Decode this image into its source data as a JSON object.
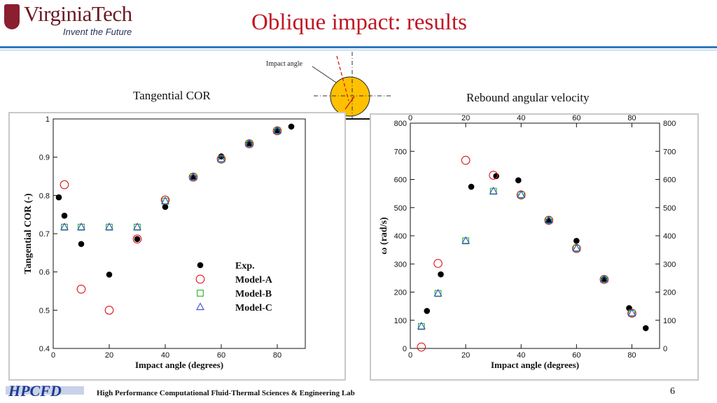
{
  "header": {
    "logo_text": "VirginiaTech",
    "logo_tagline": "Invent the Future",
    "title": "Oblique impact: results"
  },
  "diagram": {
    "impact_angle_label": "Impact angle"
  },
  "labels": {
    "left_heading": "Tangential COR",
    "right_heading": "Rebound angular velocity"
  },
  "footer": {
    "lab_name": "High Performance Computational Fluid-Thermal Sciences & Engineering Lab",
    "page_number": "6",
    "logo_text": "HPCFD"
  },
  "colors": {
    "title": "#c01723",
    "model_a": "#e0161e",
    "model_b": "#1fb31f",
    "model_c": "#3a4ed0",
    "exp": "#000000"
  },
  "chart_data": [
    {
      "type": "scatter",
      "title": "",
      "xlabel": "Impact angle (degrees)",
      "ylabel": "Tangential COR (-)",
      "xlim": [
        0,
        90
      ],
      "ylim": [
        0.4,
        1.0
      ],
      "x_ticks": [
        0,
        20,
        40,
        60,
        80
      ],
      "y_ticks": [
        0.4,
        0.5,
        0.6,
        0.7,
        0.8,
        0.9,
        1
      ],
      "legend_position": "lower-right",
      "series": [
        {
          "name": "Exp.",
          "marker": "filled-circle",
          "points": [
            [
              2,
              0.795
            ],
            [
              4,
              0.747
            ],
            [
              10,
              0.673
            ],
            [
              20,
              0.593
            ],
            [
              30,
              0.686
            ],
            [
              40,
              0.77
            ],
            [
              50,
              0.847
            ],
            [
              60,
              0.902
            ],
            [
              70,
              0.935
            ],
            [
              80,
              0.969
            ],
            [
              85,
              0.98
            ]
          ]
        },
        {
          "name": "Model-A",
          "marker": "open-circle",
          "points": [
            [
              4,
              0.828
            ],
            [
              10,
              0.555
            ],
            [
              20,
              0.5
            ],
            [
              30,
              0.686
            ],
            [
              40,
              0.788
            ],
            [
              50,
              0.848
            ],
            [
              60,
              0.895
            ],
            [
              70,
              0.935
            ],
            [
              80,
              0.969
            ]
          ]
        },
        {
          "name": "Model-B",
          "marker": "open-square",
          "points": [
            [
              4,
              0.717
            ],
            [
              10,
              0.717
            ],
            [
              20,
              0.717
            ],
            [
              30,
              0.717
            ],
            [
              40,
              0.785
            ],
            [
              50,
              0.848
            ],
            [
              60,
              0.895
            ],
            [
              70,
              0.935
            ],
            [
              80,
              0.969
            ]
          ]
        },
        {
          "name": "Model-C",
          "marker": "open-triangle",
          "points": [
            [
              4,
              0.717
            ],
            [
              10,
              0.717
            ],
            [
              20,
              0.717
            ],
            [
              30,
              0.717
            ],
            [
              40,
              0.785
            ],
            [
              50,
              0.848
            ],
            [
              60,
              0.895
            ],
            [
              70,
              0.935
            ],
            [
              80,
              0.969
            ]
          ]
        }
      ]
    },
    {
      "type": "scatter",
      "title": "",
      "xlabel": "Impact angle (degrees)",
      "ylabel": "ω (rad/s)",
      "xlim": [
        0,
        90
      ],
      "ylim": [
        0,
        800
      ],
      "x_ticks": [
        0,
        20,
        40,
        60,
        80
      ],
      "y_ticks": [
        0,
        100,
        200,
        300,
        400,
        500,
        600,
        700,
        800
      ],
      "mirrored_axes": true,
      "series": [
        {
          "name": "Exp.",
          "marker": "filled-circle",
          "points": [
            [
              6,
              133
            ],
            [
              11,
              263
            ],
            [
              22,
              574
            ],
            [
              31,
              612
            ],
            [
              39,
              597
            ],
            [
              50,
              453
            ],
            [
              60,
              382
            ],
            [
              70,
              245
            ],
            [
              79,
              143
            ],
            [
              85,
              72
            ]
          ]
        },
        {
          "name": "Model-A",
          "marker": "open-circle",
          "points": [
            [
              4,
              5
            ],
            [
              10,
              302
            ],
            [
              20,
              668
            ],
            [
              30,
              615
            ],
            [
              40,
              545
            ],
            [
              50,
              455
            ],
            [
              60,
              355
            ],
            [
              70,
              245
            ],
            [
              80,
              125
            ]
          ]
        },
        {
          "name": "Model-B",
          "marker": "open-square",
          "points": [
            [
              4,
              78
            ],
            [
              10,
              195
            ],
            [
              20,
              382
            ],
            [
              30,
              558
            ],
            [
              40,
              545
            ],
            [
              50,
              455
            ],
            [
              60,
              355
            ],
            [
              70,
              245
            ],
            [
              80,
              125
            ]
          ]
        },
        {
          "name": "Model-C",
          "marker": "open-triangle",
          "points": [
            [
              4,
              78
            ],
            [
              10,
              195
            ],
            [
              20,
              382
            ],
            [
              30,
              558
            ],
            [
              40,
              545
            ],
            [
              50,
              455
            ],
            [
              60,
              355
            ],
            [
              70,
              245
            ],
            [
              80,
              125
            ]
          ]
        }
      ]
    }
  ]
}
